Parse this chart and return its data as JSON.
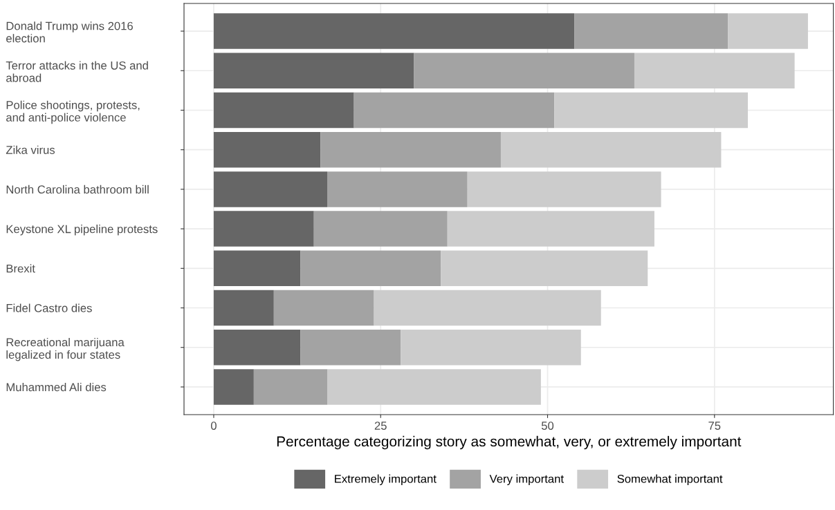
{
  "chart_data": {
    "type": "bar",
    "orientation": "horizontal",
    "stacked": true,
    "categories": [
      "Donald Trump wins 2016\nelection",
      "Terror attacks in the US and\nabroad",
      "Police shootings, protests,\nand anti-police violence",
      "Zika virus",
      "North Carolina bathroom bill",
      "Keystone XL pipeline protests",
      "Brexit",
      "Fidel Castro dies",
      "Recreational marijuana\nlegalized in four states",
      "Muhammed Ali dies"
    ],
    "series": [
      {
        "name": "Extremely important",
        "color": "#666666",
        "values": [
          54,
          30,
          21,
          16,
          17,
          15,
          13,
          9,
          13,
          6
        ]
      },
      {
        "name": "Very important",
        "color": "#a3a3a3",
        "values": [
          23,
          33,
          30,
          27,
          21,
          20,
          21,
          15,
          15,
          11
        ]
      },
      {
        "name": "Somewhat important",
        "color": "#cccccc",
        "values": [
          12,
          24,
          29,
          33,
          29,
          31,
          31,
          34,
          27,
          32
        ]
      }
    ],
    "xlabel": "Percentage categorizing story as somewhat, very, or extremely important",
    "xlim": [
      -4.45,
      92.8
    ],
    "xticks": [
      0,
      25,
      50,
      75
    ],
    "grid": true,
    "legend": "bottom"
  }
}
